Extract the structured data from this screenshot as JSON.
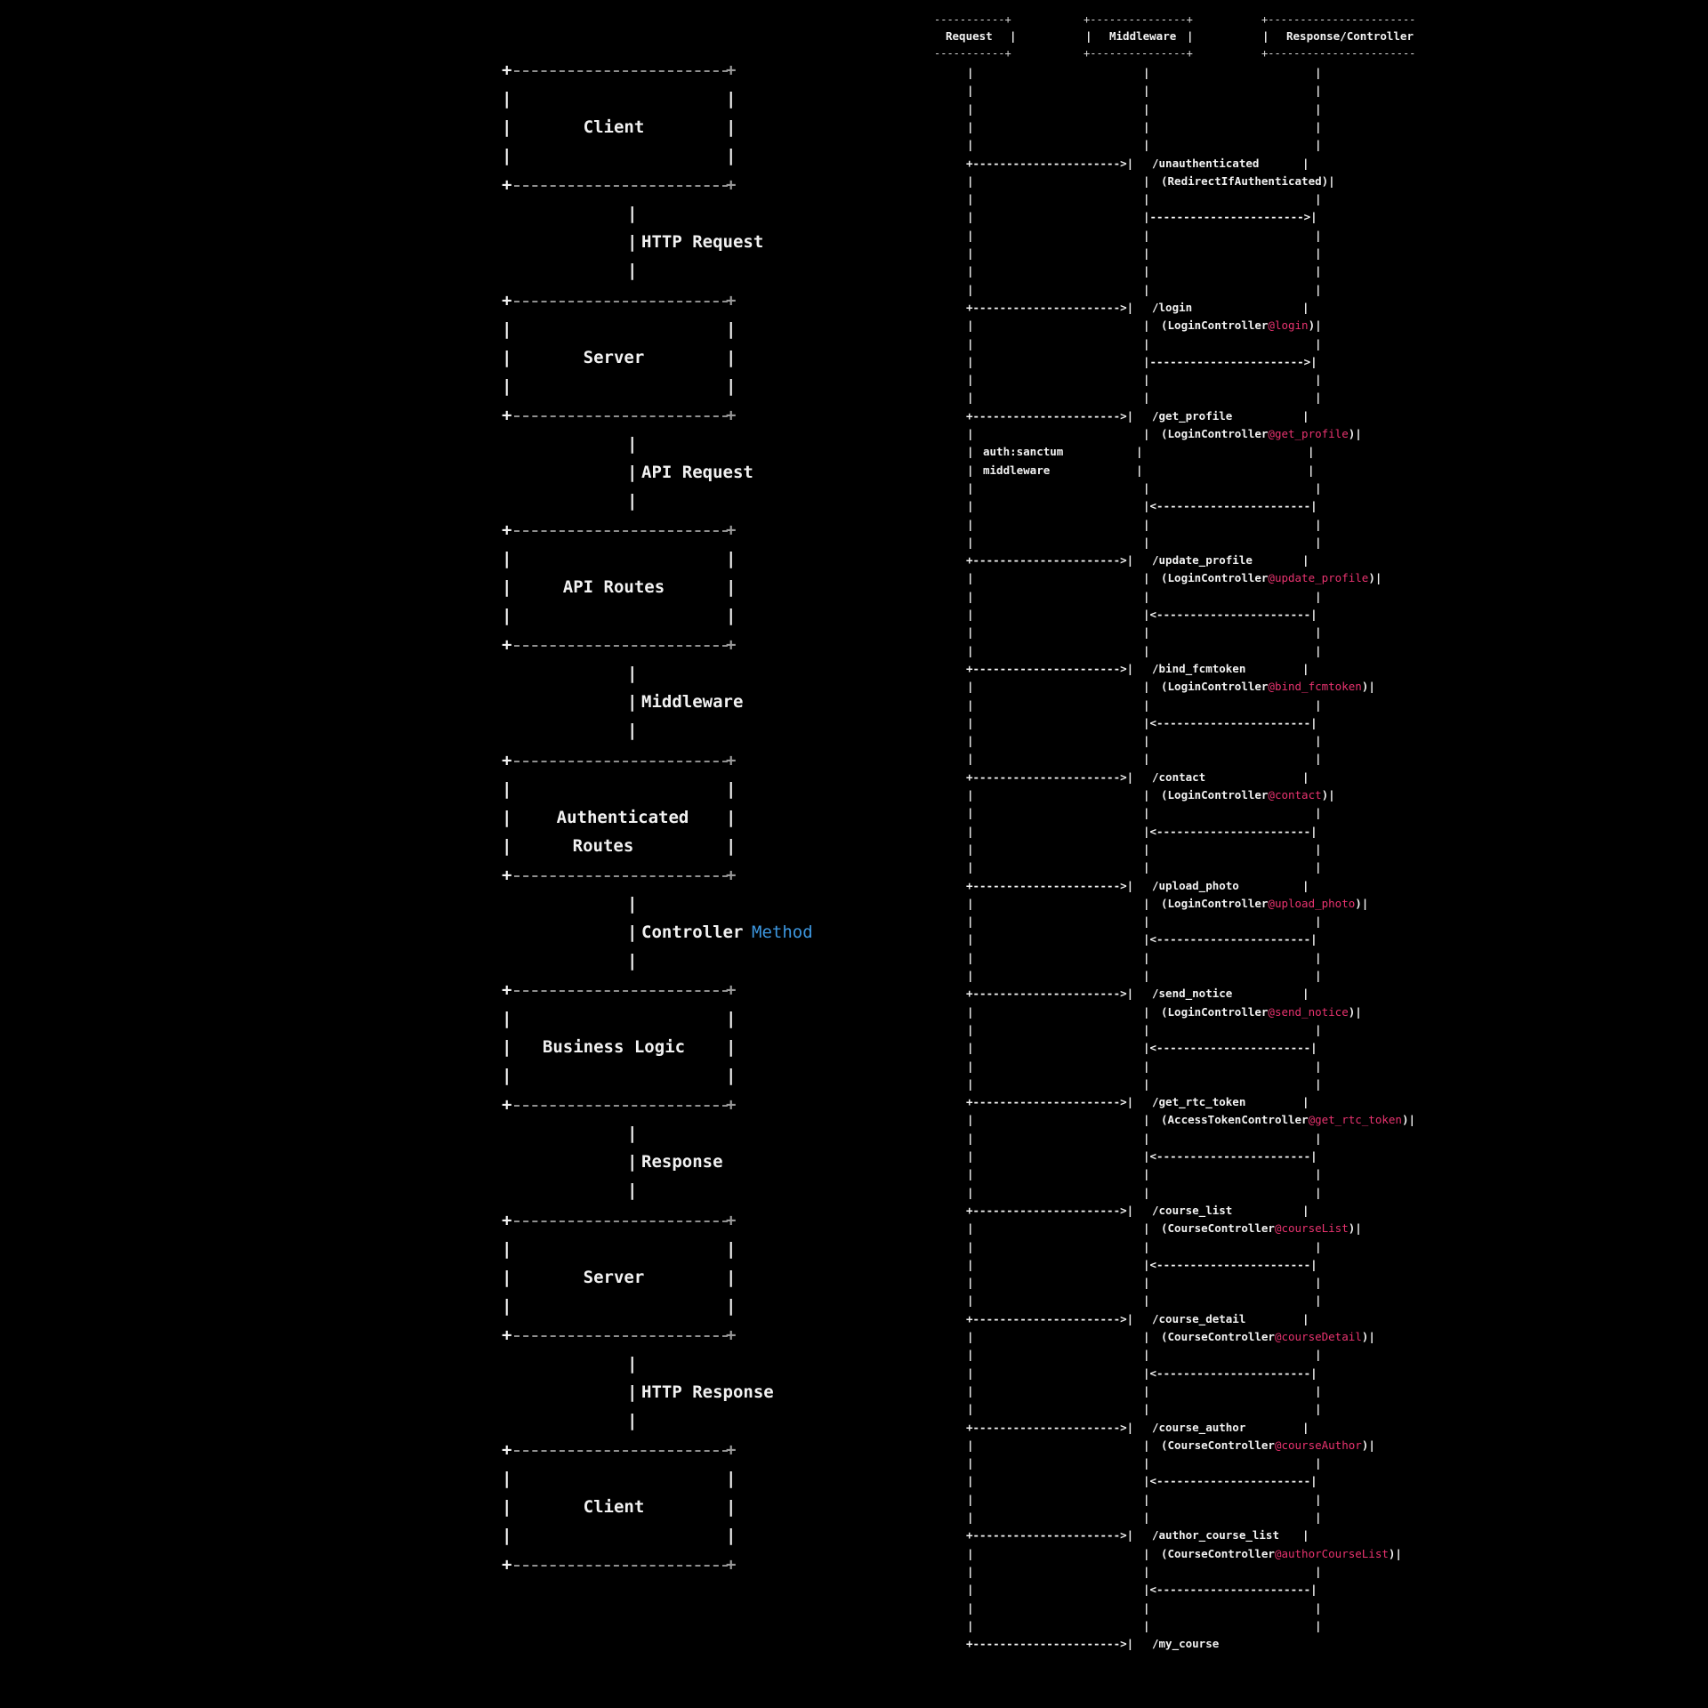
{
  "flow": {
    "boxes": [
      {
        "id": "client-top",
        "lines": [
          "Client"
        ]
      },
      {
        "id": "server-1",
        "lines": [
          "Server"
        ]
      },
      {
        "id": "api-routes",
        "lines": [
          "API Routes"
        ]
      },
      {
        "id": "authenticated-routes",
        "lines": [
          "Authenticated",
          "Routes"
        ]
      },
      {
        "id": "business-logic",
        "lines": [
          "Business Logic"
        ]
      },
      {
        "id": "server-2",
        "lines": [
          "Server"
        ]
      },
      {
        "id": "client-bottom",
        "lines": [
          "Client"
        ]
      }
    ],
    "connectors": [
      {
        "label": "HTTP Request",
        "highlight": ""
      },
      {
        "label": "API Request",
        "highlight": ""
      },
      {
        "label": "Middleware",
        "highlight": ""
      },
      {
        "label": "Controller",
        "highlight": "Method"
      },
      {
        "label": "Response",
        "highlight": ""
      },
      {
        "label": "HTTP Response",
        "highlight": ""
      }
    ]
  },
  "sequence": {
    "headers": {
      "request": "Request",
      "middleware": "Middleware",
      "response": "Response/Controller"
    },
    "middleware_note": [
      "auth:sanctum",
      "middleware"
    ],
    "routes": [
      {
        "path": "/unauthenticated",
        "controller": "RedirectIfAuthenticated",
        "method": "",
        "reply": "->"
      },
      {
        "path": "/login",
        "controller": "LoginController",
        "method": "@login",
        "reply": "->"
      },
      {
        "path": "/get_profile",
        "controller": "LoginController",
        "method": "@get_profile",
        "reply": "<-"
      },
      {
        "path": "/update_profile",
        "controller": "LoginController",
        "method": "@update_profile",
        "reply": "<-"
      },
      {
        "path": "/bind_fcmtoken",
        "controller": "LoginController",
        "method": "@bind_fcmtoken",
        "reply": "<-"
      },
      {
        "path": "/contact",
        "controller": "LoginController",
        "method": "@contact",
        "reply": "<-"
      },
      {
        "path": "/upload_photo",
        "controller": "LoginController",
        "method": "@upload_photo",
        "reply": "<-"
      },
      {
        "path": "/send_notice",
        "controller": "LoginController",
        "method": "@send_notice",
        "reply": "<-"
      },
      {
        "path": "/get_rtc_token",
        "controller": "AccessTokenController",
        "method": "@get_rtc_token",
        "reply": "<-"
      },
      {
        "path": "/course_list",
        "controller": "CourseController",
        "method": "@courseList",
        "reply": "<-"
      },
      {
        "path": "/course_detail",
        "controller": "CourseController",
        "method": "@courseDetail",
        "reply": "<-"
      },
      {
        "path": "/course_author",
        "controller": "CourseController",
        "method": "@courseAuthor",
        "reply": "<-"
      },
      {
        "path": "/author_course_list",
        "controller": "CourseController",
        "method": "@authorCourseList",
        "reply": "<-"
      },
      {
        "path": "/my_course",
        "controller": "",
        "method": "",
        "reply": ""
      }
    ],
    "glyphs": {
      "corner": "+",
      "bar": "|",
      "arrow_right": "---------------------->|",
      "arrow_call": "+---------------------->|",
      "reply_right": "|----------------------->|",
      "reply_left": "|<-----------------------|",
      "box_edge": "+------------------------+",
      "hdr_left": "-----------+",
      "hdr_mid": "+---------------+",
      "hdr_right": "+-----------------------"
    }
  },
  "colors": {
    "background": "#000000",
    "text": "#f2f2f2",
    "method": "#e8336f",
    "highlight": "#3d97e0",
    "border_dash": "#9a9a9a"
  }
}
